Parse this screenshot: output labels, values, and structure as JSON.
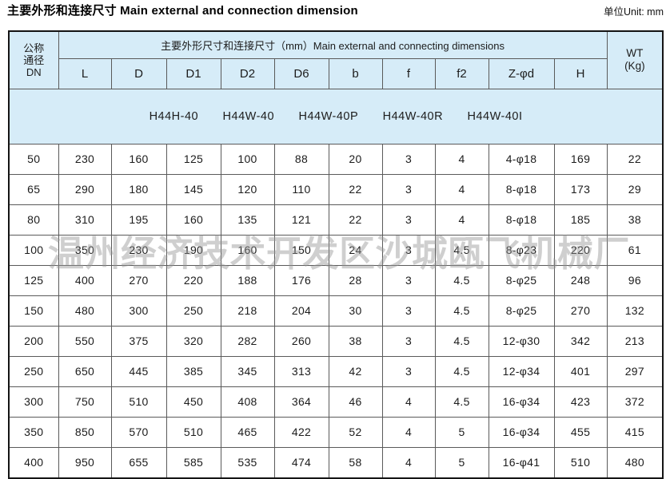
{
  "title": "主要外形和连接尺寸 Main external and connection dimension",
  "unit_label": "单位Unit: mm",
  "table": {
    "dn_header": [
      "公称",
      "通径",
      "DN"
    ],
    "group_header": "主要外形尺寸和连接尺寸（mm）Main external and connecting dimensions",
    "wt_header": [
      "WT",
      "(Kg)"
    ],
    "sub_headers": [
      "L",
      "D",
      "D1",
      "D2",
      "D6",
      "b",
      "f",
      "f2",
      "Z-φd",
      "H"
    ],
    "models": [
      "H44H-40",
      "H44W-40",
      "H44W-40P",
      "H44W-40R",
      "H44W-40I"
    ],
    "rows": [
      [
        "50",
        "230",
        "160",
        "125",
        "100",
        "88",
        "20",
        "3",
        "4",
        "4-φ18",
        "169",
        "22"
      ],
      [
        "65",
        "290",
        "180",
        "145",
        "120",
        "110",
        "22",
        "3",
        "4",
        "8-φ18",
        "173",
        "29"
      ],
      [
        "80",
        "310",
        "195",
        "160",
        "135",
        "121",
        "22",
        "3",
        "4",
        "8-φ18",
        "185",
        "38"
      ],
      [
        "100",
        "350",
        "230",
        "190",
        "160",
        "150",
        "24",
        "3",
        "4.5",
        "8-φ23",
        "220",
        "61"
      ],
      [
        "125",
        "400",
        "270",
        "220",
        "188",
        "176",
        "28",
        "3",
        "4.5",
        "8-φ25",
        "248",
        "96"
      ],
      [
        "150",
        "480",
        "300",
        "250",
        "218",
        "204",
        "30",
        "3",
        "4.5",
        "8-φ25",
        "270",
        "132"
      ],
      [
        "200",
        "550",
        "375",
        "320",
        "282",
        "260",
        "38",
        "3",
        "4.5",
        "12-φ30",
        "342",
        "213"
      ],
      [
        "250",
        "650",
        "445",
        "385",
        "345",
        "313",
        "42",
        "3",
        "4.5",
        "12-φ34",
        "401",
        "297"
      ],
      [
        "300",
        "750",
        "510",
        "450",
        "408",
        "364",
        "46",
        "4",
        "4.5",
        "16-φ34",
        "423",
        "372"
      ],
      [
        "350",
        "850",
        "570",
        "510",
        "465",
        "422",
        "52",
        "4",
        "5",
        "16-φ34",
        "455",
        "415"
      ],
      [
        "400",
        "950",
        "655",
        "585",
        "535",
        "474",
        "58",
        "4",
        "5",
        "16-φ41",
        "510",
        "480"
      ]
    ]
  },
  "watermark": "温州经济技术开发区沙城瓯飞机械厂",
  "colors": {
    "header_bg": "#d6ecf8",
    "inner_border": "#5a5a5a",
    "outer_border": "#141414",
    "text": "#1c1c1c",
    "watermark": "#949494"
  }
}
